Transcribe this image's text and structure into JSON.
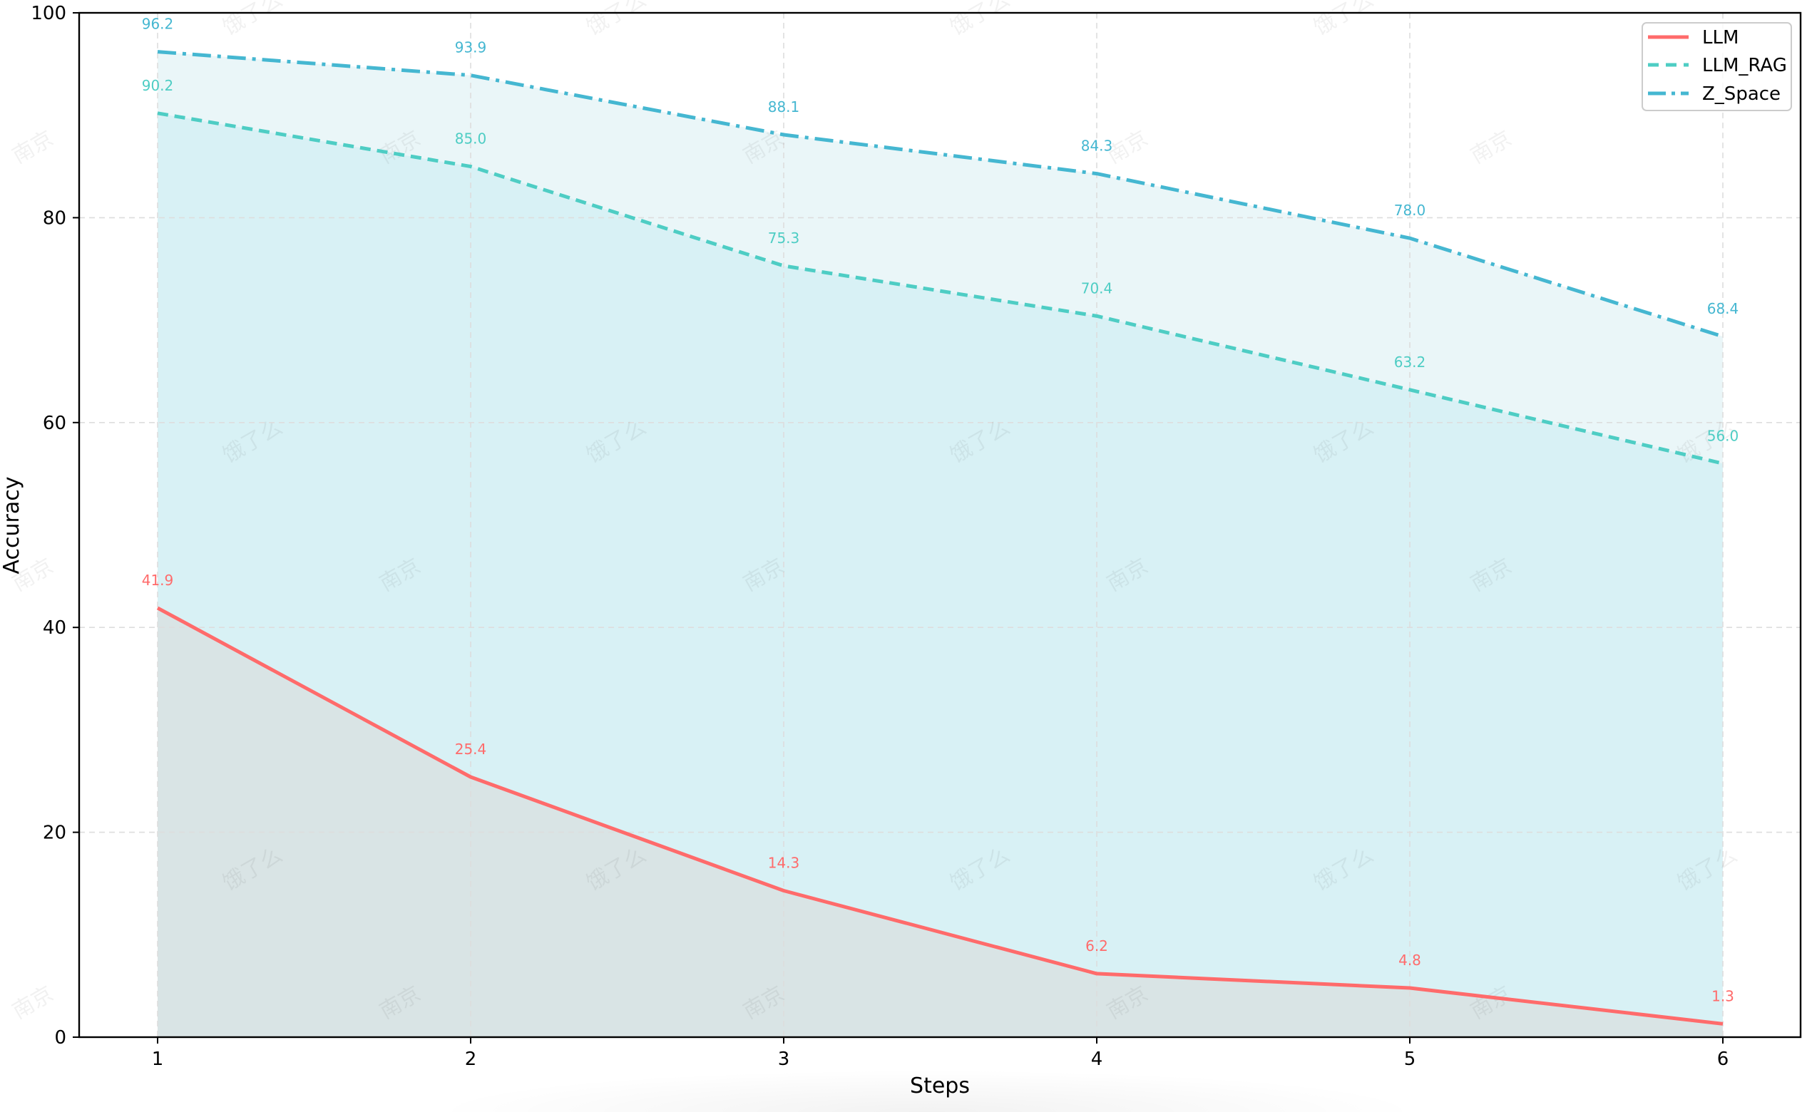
{
  "chart_data": {
    "type": "line",
    "title": "",
    "xlabel": "Steps",
    "ylabel": "Accuracy",
    "x": [
      1,
      2,
      3,
      4,
      5,
      6
    ],
    "xticks": [
      "1",
      "2",
      "3",
      "4",
      "5",
      "6"
    ],
    "yticks": [
      "0",
      "20",
      "40",
      "60",
      "80",
      "100"
    ],
    "ylim": [
      0,
      100
    ],
    "xlim": [
      0.75,
      6.25
    ],
    "grid": true,
    "legend_position": "upper right",
    "area_fill": true,
    "series": [
      {
        "name": "LLM",
        "color": "#FF6B6B",
        "linestyle": "solid",
        "fill": "#D9E4E5",
        "values": [
          41.9,
          25.4,
          14.3,
          6.2,
          4.8,
          1.3
        ]
      },
      {
        "name": "LLM_RAG",
        "color": "#4ECDC4",
        "linestyle": "dashed",
        "fill": "#D8F1F5",
        "values": [
          90.2,
          85.0,
          75.3,
          70.4,
          63.2,
          56.0
        ]
      },
      {
        "name": "Z_Space",
        "color": "#45B7D1",
        "linestyle": "dashdot",
        "fill": "#EAF6F8",
        "values": [
          96.2,
          93.9,
          88.1,
          84.3,
          78.0,
          68.4
        ]
      }
    ],
    "data_labels": {
      "LLM": [
        "41.9",
        "25.4",
        "14.3",
        "6.2",
        "4.8",
        "1.3"
      ],
      "LLM_RAG": [
        "90.2",
        "85.0",
        "75.3",
        "70.4",
        "63.2",
        "56.0"
      ],
      "Z_Space": [
        "96.2",
        "93.9",
        "88.1",
        "84.3",
        "78.0",
        "68.4"
      ]
    }
  },
  "legend": {
    "items": [
      {
        "label": "LLM"
      },
      {
        "label": "LLM_RAG"
      },
      {
        "label": "Z_Space"
      }
    ]
  },
  "watermarks": {
    "a": "饿了么",
    "b": "南京"
  }
}
